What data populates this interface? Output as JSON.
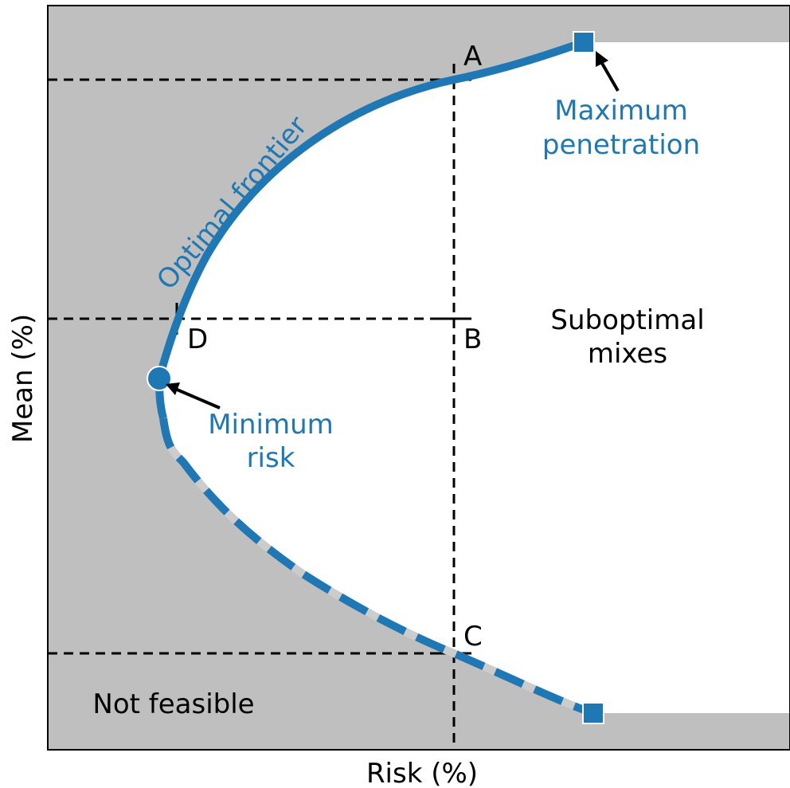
{
  "axes": {
    "x_label": "Risk (%)",
    "y_label": "Mean (%)"
  },
  "points": {
    "a": "A",
    "b": "B",
    "c": "C",
    "d": "D"
  },
  "regions": {
    "suboptimal": [
      "Suboptimal",
      "mixes"
    ],
    "not_feasible": "Not feasible"
  },
  "annotations": {
    "optimal_frontier": "Optimal frontier",
    "minimum_risk": [
      "Minimum",
      "risk"
    ],
    "maximum_penetration": [
      "Maximum",
      "penetration"
    ]
  }
}
